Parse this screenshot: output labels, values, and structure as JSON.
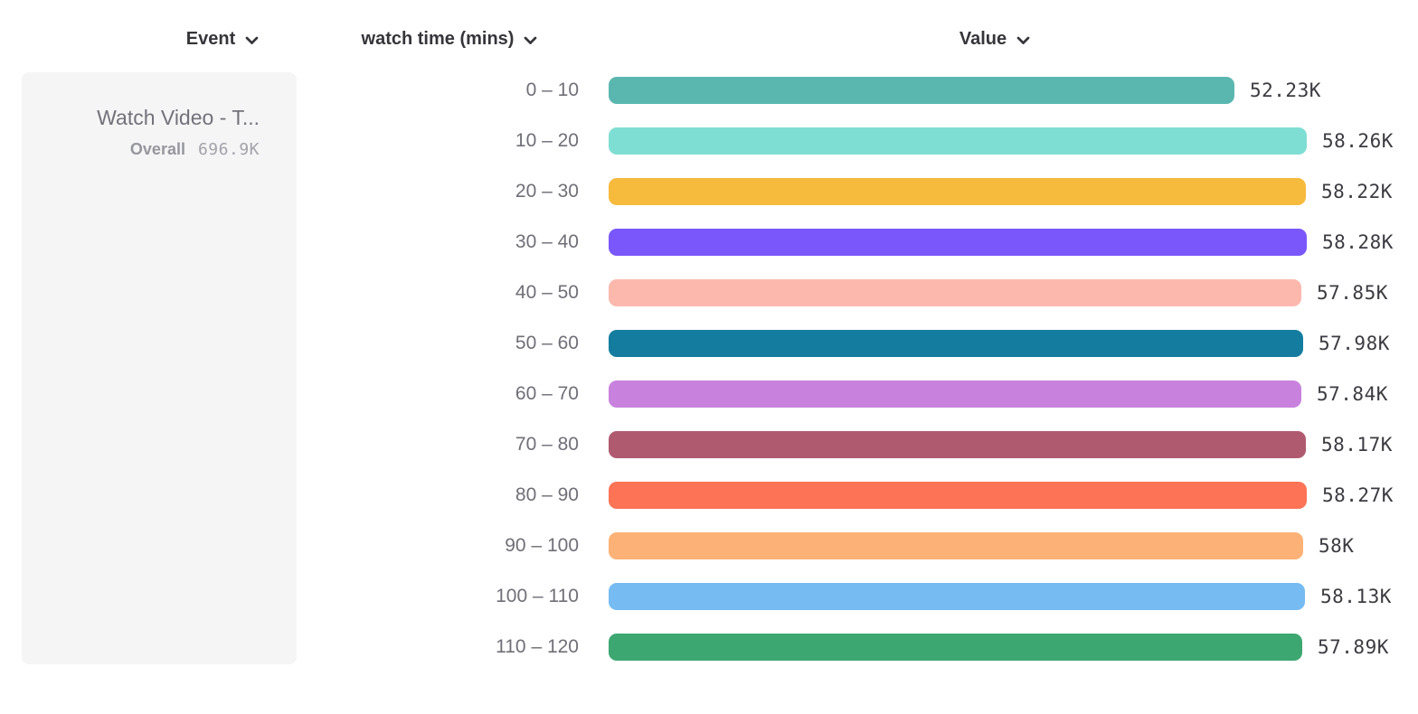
{
  "header": {
    "event_label": "Event",
    "dimension_label": "watch time (mins)",
    "value_label": "Value"
  },
  "event_card": {
    "event_name": "Watch Video - T...",
    "overall_label": "Overall",
    "overall_value": "696.9K"
  },
  "chart_data": {
    "type": "bar",
    "orientation": "horizontal",
    "title": "",
    "xlabel": "Value",
    "ylabel": "watch time (mins)",
    "grid": false,
    "legend": "none",
    "xlim": [
      0,
      58280
    ],
    "overall_total_label": "696.9K",
    "categories": [
      "0 – 10",
      "10 – 20",
      "20 – 30",
      "30 – 40",
      "40 – 50",
      "50 – 60",
      "60 – 70",
      "70 – 80",
      "80 – 90",
      "90 – 100",
      "100 – 110",
      "110 – 120"
    ],
    "values": [
      52230,
      58260,
      58220,
      58280,
      57850,
      57980,
      57840,
      58170,
      58270,
      58000,
      58130,
      57890
    ],
    "value_labels": [
      "52.23K",
      "58.26K",
      "58.22K",
      "58.28K",
      "57.85K",
      "57.98K",
      "57.84K",
      "58.17K",
      "58.27K",
      "58K",
      "58.13K",
      "57.89K"
    ],
    "bar_colors": [
      "#5AB7B0",
      "#7FDED3",
      "#F6BA3D",
      "#7957FA",
      "#FDB8AE",
      "#147D9F",
      "#C882DD",
      "#B05A70",
      "#FC7356",
      "#FCB276",
      "#76BBF1",
      "#3DA771"
    ]
  }
}
